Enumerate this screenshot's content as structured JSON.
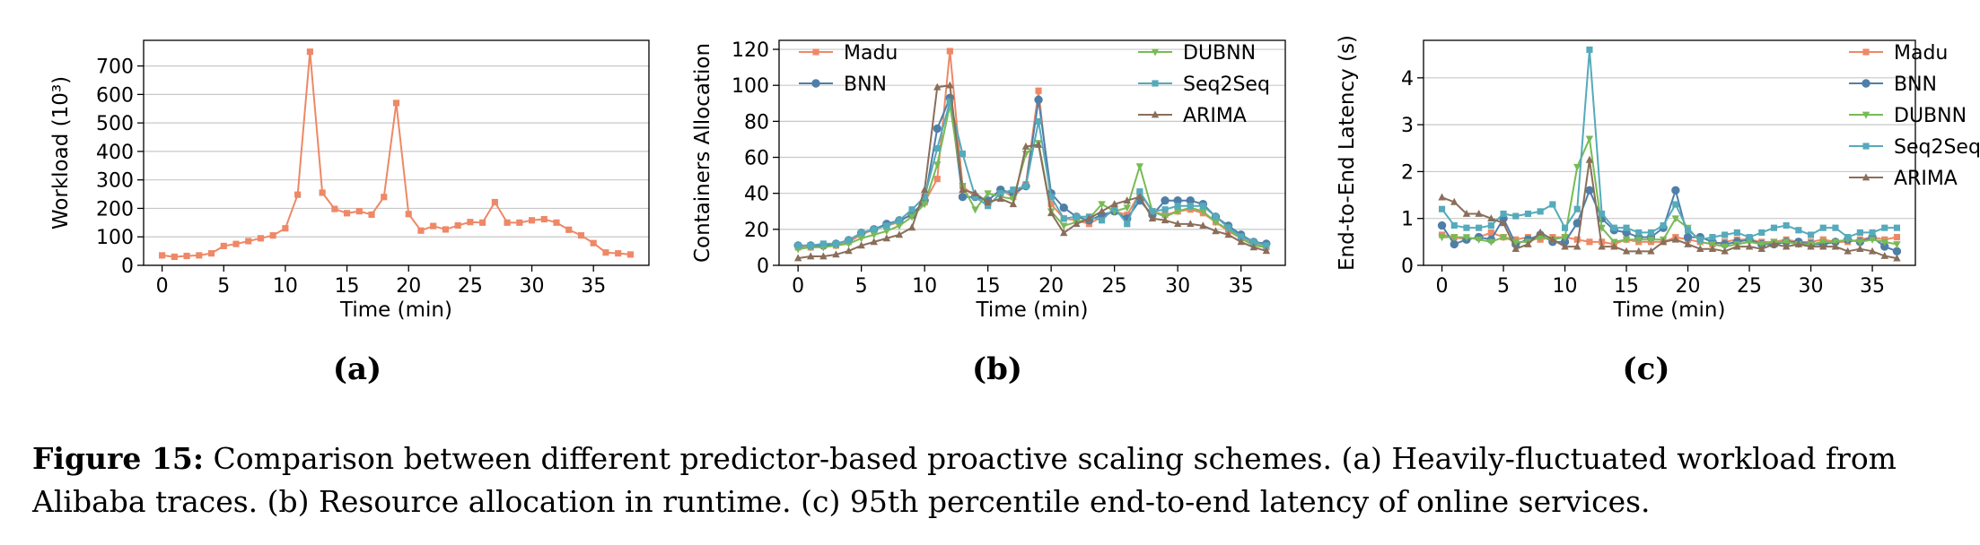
{
  "figure": {
    "caption_label": "Figure 15:",
    "caption_text": "Comparison between different predictor-based proactive scaling schemes. (a) Heavily-fluctuated workload from Alibaba traces. (b) Resource allocation in runtime. (c) 95th percentile end-to-end latency of online services."
  },
  "colors": {
    "Madu": "#ee8866",
    "BNN": "#4f7fa8",
    "DUBNN": "#77bb55",
    "Seq2Seq": "#55aabb",
    "ARIMA": "#8a6e5a",
    "workload": "#ee8866"
  },
  "chart_data": [
    {
      "id": "a",
      "sublabel": "(a)",
      "type": "line",
      "xlabel": "Time (min)",
      "ylabel": "Workload (10³)",
      "xlim": [
        -1.5,
        39.5
      ],
      "ylim": [
        0,
        790
      ],
      "xticks": [
        0,
        5,
        10,
        15,
        20,
        25,
        30,
        35
      ],
      "yticks": [
        0,
        100,
        200,
        300,
        400,
        500,
        600,
        700
      ],
      "grid": true,
      "legend": "none",
      "series": [
        {
          "key": "workload",
          "marker": "square",
          "x": [
            0,
            1,
            2,
            3,
            4,
            5,
            6,
            7,
            8,
            9,
            10,
            11,
            12,
            13,
            14,
            15,
            16,
            17,
            18,
            19,
            20,
            21,
            22,
            23,
            24,
            25,
            26,
            27,
            28,
            29,
            30,
            31,
            32,
            33,
            34,
            35,
            36,
            37,
            38
          ],
          "values": [
            35,
            30,
            33,
            35,
            42,
            68,
            75,
            85,
            95,
            105,
            130,
            248,
            750,
            255,
            198,
            183,
            190,
            178,
            240,
            570,
            180,
            122,
            138,
            126,
            140,
            152,
            150,
            222,
            150,
            150,
            158,
            162,
            150,
            125,
            105,
            78,
            45,
            42,
            38
          ]
        }
      ]
    },
    {
      "id": "b",
      "sublabel": "(b)",
      "type": "line",
      "xlabel": "Time (min)",
      "ylabel": "Containers Allocation",
      "xlim": [
        -1.5,
        38.5
      ],
      "ylim": [
        0,
        125
      ],
      "xticks": [
        0,
        5,
        10,
        15,
        20,
        25,
        30,
        35
      ],
      "yticks": [
        0,
        20,
        40,
        60,
        80,
        100,
        120
      ],
      "grid": true,
      "legend": "top",
      "series": [
        {
          "name": "Madu",
          "key": "Madu",
          "marker": "square",
          "x": [
            0,
            1,
            2,
            3,
            4,
            5,
            6,
            7,
            8,
            9,
            10,
            11,
            12,
            13,
            14,
            15,
            16,
            17,
            18,
            19,
            20,
            21,
            22,
            23,
            24,
            25,
            26,
            27,
            28,
            29,
            30,
            31,
            32,
            33,
            34,
            35,
            36,
            37
          ],
          "values": [
            10,
            10,
            11,
            11,
            13,
            17,
            20,
            22,
            24,
            29,
            35,
            48,
            119,
            44,
            38,
            36,
            42,
            38,
            45,
            97,
            34,
            26,
            25,
            23,
            27,
            30,
            28,
            40,
            30,
            28,
            30,
            31,
            29,
            24,
            19,
            15,
            12,
            10
          ]
        },
        {
          "name": "BNN",
          "key": "BNN",
          "marker": "circle",
          "x": [
            0,
            1,
            2,
            3,
            4,
            5,
            6,
            7,
            8,
            9,
            10,
            11,
            12,
            13,
            14,
            15,
            16,
            17,
            18,
            19,
            20,
            21,
            22,
            23,
            24,
            25,
            26,
            27,
            28,
            29,
            30,
            31,
            32,
            33,
            34,
            35,
            36,
            37
          ],
          "values": [
            11,
            11,
            11,
            12,
            14,
            18,
            20,
            23,
            25,
            28,
            36,
            76,
            93,
            38,
            38,
            36,
            42,
            40,
            44,
            92,
            40,
            32,
            27,
            25,
            28,
            30,
            26,
            36,
            28,
            36,
            36,
            36,
            34,
            27,
            22,
            17,
            13,
            12
          ]
        },
        {
          "name": "DUBNN",
          "key": "DUBNN",
          "marker": "triangle-down",
          "x": [
            0,
            1,
            2,
            3,
            4,
            5,
            6,
            7,
            8,
            9,
            10,
            11,
            12,
            13,
            14,
            15,
            16,
            17,
            18,
            19,
            20,
            21,
            22,
            23,
            24,
            25,
            26,
            27,
            28,
            29,
            30,
            31,
            32,
            33,
            34,
            35,
            36,
            37
          ],
          "values": [
            9,
            10,
            10,
            11,
            12,
            15,
            17,
            19,
            22,
            27,
            34,
            56,
            89,
            44,
            31,
            40,
            38,
            37,
            62,
            68,
            30,
            22,
            24,
            26,
            34,
            30,
            32,
            55,
            30,
            27,
            30,
            32,
            30,
            24,
            20,
            15,
            11,
            10
          ]
        },
        {
          "name": "Seq2Seq",
          "key": "Seq2Seq",
          "marker": "square",
          "x": [
            0,
            1,
            2,
            3,
            4,
            5,
            6,
            7,
            8,
            9,
            10,
            11,
            12,
            13,
            14,
            15,
            16,
            17,
            18,
            19,
            20,
            21,
            22,
            23,
            24,
            25,
            26,
            27,
            28,
            29,
            30,
            31,
            32,
            33,
            34,
            35,
            36,
            37
          ],
          "values": [
            11,
            11,
            12,
            12,
            14,
            18,
            20,
            22,
            25,
            31,
            38,
            65,
            91,
            62,
            38,
            33,
            40,
            42,
            44,
            80,
            38,
            26,
            27,
            27,
            25,
            32,
            23,
            41,
            30,
            31,
            33,
            33,
            33,
            27,
            21,
            16,
            13,
            11
          ]
        },
        {
          "name": "ARIMA",
          "key": "ARIMA",
          "marker": "triangle-up",
          "x": [
            0,
            1,
            2,
            3,
            4,
            5,
            6,
            7,
            8,
            9,
            10,
            11,
            12,
            13,
            14,
            15,
            16,
            17,
            18,
            19,
            20,
            21,
            22,
            23,
            24,
            25,
            26,
            27,
            28,
            29,
            30,
            31,
            32,
            33,
            34,
            35,
            36,
            37
          ],
          "values": [
            4,
            5,
            5,
            6,
            8,
            11,
            13,
            15,
            17,
            21,
            42,
            99,
            100,
            42,
            40,
            35,
            37,
            34,
            66,
            67,
            29,
            18,
            23,
            26,
            30,
            34,
            36,
            38,
            26,
            25,
            23,
            23,
            22,
            19,
            17,
            13,
            10,
            8
          ]
        }
      ]
    },
    {
      "id": "c",
      "sublabel": "(c)",
      "type": "line",
      "xlabel": "Time (min)",
      "ylabel": "End-to-End Latency (s)",
      "xlim": [
        -1.5,
        38.5
      ],
      "ylim": [
        0,
        4.8
      ],
      "xticks": [
        0,
        5,
        10,
        15,
        20,
        25,
        30,
        35
      ],
      "yticks": [
        0,
        1,
        2,
        3,
        4
      ],
      "grid": true,
      "legend": "right",
      "series": [
        {
          "name": "Madu",
          "key": "Madu",
          "marker": "square",
          "x": [
            0,
            1,
            2,
            3,
            4,
            5,
            6,
            7,
            8,
            9,
            10,
            11,
            12,
            13,
            14,
            15,
            16,
            17,
            18,
            19,
            20,
            21,
            22,
            23,
            24,
            25,
            26,
            27,
            28,
            29,
            30,
            31,
            32,
            33,
            34,
            35,
            36,
            37
          ],
          "values": [
            0.65,
            0.6,
            0.55,
            0.6,
            0.7,
            0.6,
            0.55,
            0.6,
            0.55,
            0.6,
            0.6,
            0.55,
            0.5,
            0.5,
            0.45,
            0.55,
            0.5,
            0.5,
            0.5,
            0.6,
            0.55,
            0.5,
            0.45,
            0.5,
            0.55,
            0.55,
            0.5,
            0.5,
            0.55,
            0.5,
            0.5,
            0.55,
            0.5,
            0.5,
            0.55,
            0.6,
            0.55,
            0.6
          ]
        },
        {
          "name": "BNN",
          "key": "BNN",
          "marker": "circle",
          "x": [
            0,
            1,
            2,
            3,
            4,
            5,
            6,
            7,
            8,
            9,
            10,
            11,
            12,
            13,
            14,
            15,
            16,
            17,
            18,
            19,
            20,
            21,
            22,
            23,
            24,
            25,
            26,
            27,
            28,
            29,
            30,
            31,
            32,
            33,
            34,
            35,
            36,
            37
          ],
          "values": [
            0.85,
            0.45,
            0.55,
            0.6,
            0.55,
            1.0,
            0.45,
            0.55,
            0.65,
            0.5,
            0.5,
            0.9,
            1.6,
            1.0,
            0.75,
            0.7,
            0.6,
            0.6,
            0.8,
            1.6,
            0.6,
            0.6,
            0.5,
            0.45,
            0.5,
            0.55,
            0.45,
            0.45,
            0.5,
            0.5,
            0.45,
            0.45,
            0.5,
            0.55,
            0.5,
            0.6,
            0.4,
            0.3
          ]
        },
        {
          "name": "DUBNN",
          "key": "DUBNN",
          "marker": "triangle-down",
          "x": [
            0,
            1,
            2,
            3,
            4,
            5,
            6,
            7,
            8,
            9,
            10,
            11,
            12,
            13,
            14,
            15,
            16,
            17,
            18,
            19,
            20,
            21,
            22,
            23,
            24,
            25,
            26,
            27,
            28,
            29,
            30,
            31,
            32,
            33,
            34,
            35,
            36,
            37
          ],
          "values": [
            0.6,
            0.6,
            0.6,
            0.55,
            0.5,
            0.6,
            0.5,
            0.5,
            0.6,
            0.55,
            0.6,
            2.1,
            2.7,
            0.8,
            0.5,
            0.55,
            0.55,
            0.55,
            0.55,
            1.0,
            0.8,
            0.5,
            0.45,
            0.4,
            0.45,
            0.5,
            0.45,
            0.5,
            0.5,
            0.45,
            0.45,
            0.5,
            0.5,
            0.55,
            0.5,
            0.55,
            0.5,
            0.45
          ]
        },
        {
          "name": "Seq2Seq",
          "key": "Seq2Seq",
          "marker": "square",
          "x": [
            0,
            1,
            2,
            3,
            4,
            5,
            6,
            7,
            8,
            9,
            10,
            11,
            12,
            13,
            14,
            15,
            16,
            17,
            18,
            19,
            20,
            21,
            22,
            23,
            24,
            25,
            26,
            27,
            28,
            29,
            30,
            31,
            32,
            33,
            34,
            35,
            36,
            37
          ],
          "values": [
            1.2,
            0.85,
            0.8,
            0.8,
            0.85,
            1.1,
            1.05,
            1.1,
            1.15,
            1.3,
            0.8,
            1.2,
            4.6,
            1.1,
            0.8,
            0.8,
            0.7,
            0.7,
            0.85,
            1.3,
            0.75,
            0.55,
            0.6,
            0.65,
            0.7,
            0.6,
            0.7,
            0.8,
            0.85,
            0.75,
            0.65,
            0.8,
            0.8,
            0.6,
            0.7,
            0.7,
            0.8,
            0.8
          ]
        },
        {
          "name": "ARIMA",
          "key": "ARIMA",
          "marker": "triangle-up",
          "x": [
            0,
            1,
            2,
            3,
            4,
            5,
            6,
            7,
            8,
            9,
            10,
            11,
            12,
            13,
            14,
            15,
            16,
            17,
            18,
            19,
            20,
            21,
            22,
            23,
            24,
            25,
            26,
            27,
            28,
            29,
            30,
            31,
            32,
            33,
            34,
            35,
            36,
            37
          ],
          "values": [
            1.45,
            1.35,
            1.1,
            1.1,
            1.0,
            0.9,
            0.35,
            0.45,
            0.7,
            0.55,
            0.4,
            0.4,
            2.25,
            0.4,
            0.4,
            0.3,
            0.3,
            0.3,
            0.5,
            0.55,
            0.45,
            0.35,
            0.35,
            0.3,
            0.4,
            0.4,
            0.35,
            0.45,
            0.4,
            0.45,
            0.4,
            0.4,
            0.4,
            0.3,
            0.35,
            0.3,
            0.2,
            0.15
          ]
        }
      ]
    }
  ]
}
